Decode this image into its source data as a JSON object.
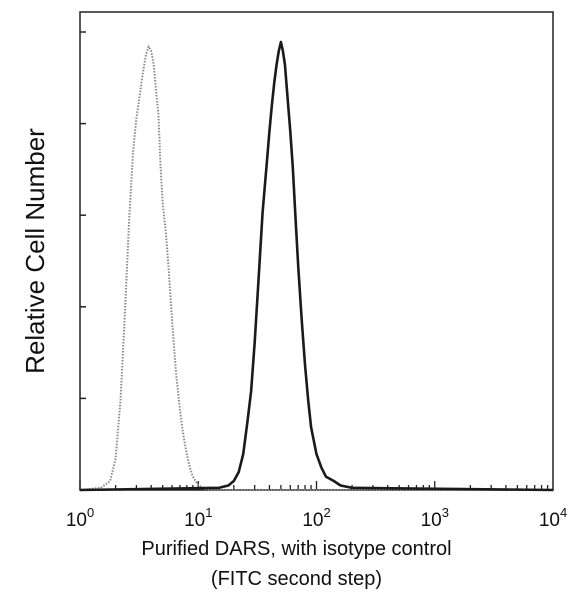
{
  "chart_data": {
    "type": "line",
    "title": "",
    "xlabel_line1": "Purified DARS, with isotype control",
    "xlabel_line2": "(FITC second step)",
    "ylabel": "Relative Cell Number",
    "x_scale": "log",
    "xlim": [
      1,
      10000
    ],
    "ylim": [
      0,
      100
    ],
    "x_ticks": [
      {
        "base": "10",
        "exp": "0",
        "value": 1
      },
      {
        "base": "10",
        "exp": "1",
        "value": 10
      },
      {
        "base": "10",
        "exp": "2",
        "value": 100
      },
      {
        "base": "10",
        "exp": "3",
        "value": 1000
      },
      {
        "base": "10",
        "exp": "4",
        "value": 10000
      }
    ],
    "y_tick_count": 5,
    "grid": false,
    "series": [
      {
        "color": "#8a8a8a",
        "style": "dotted",
        "x": [
          1.0,
          1.5,
          1.8,
          2.0,
          2.2,
          2.4,
          2.6,
          2.8,
          3.0,
          3.2,
          3.4,
          3.6,
          3.8,
          4.0,
          4.2,
          4.4,
          4.6,
          4.8,
          5.0,
          5.3,
          5.6,
          6.0,
          6.5,
          7.0,
          7.5,
          8.0,
          8.5,
          9.0,
          10.0,
          12.0,
          10000
        ],
        "y": [
          0,
          0.5,
          2,
          7,
          20,
          40,
          60,
          75,
          83,
          88,
          93,
          97,
          99,
          98,
          95,
          89,
          84,
          72,
          64,
          58,
          50,
          38,
          26,
          18,
          12,
          8,
          5,
          3,
          1,
          0,
          0
        ]
      },
      {
        "color": "#1a1a1a",
        "style": "solid",
        "x": [
          1.0,
          15,
          18,
          20,
          22,
          24,
          26,
          28,
          30,
          32,
          35,
          38,
          40,
          42,
          44,
          46,
          48,
          50,
          52,
          54,
          56,
          58,
          60,
          63,
          66,
          70,
          75,
          80,
          85,
          90,
          100,
          110,
          120,
          140,
          160,
          200,
          10000
        ],
        "y": [
          0,
          0.5,
          1,
          2,
          4,
          8,
          15,
          22,
          33,
          45,
          62,
          73,
          80,
          86,
          91,
          95,
          98,
          100,
          98,
          95,
          90,
          85,
          80,
          72,
          62,
          50,
          38,
          28,
          20,
          14,
          8,
          5,
          3,
          2,
          1,
          0.5,
          0
        ]
      }
    ]
  }
}
